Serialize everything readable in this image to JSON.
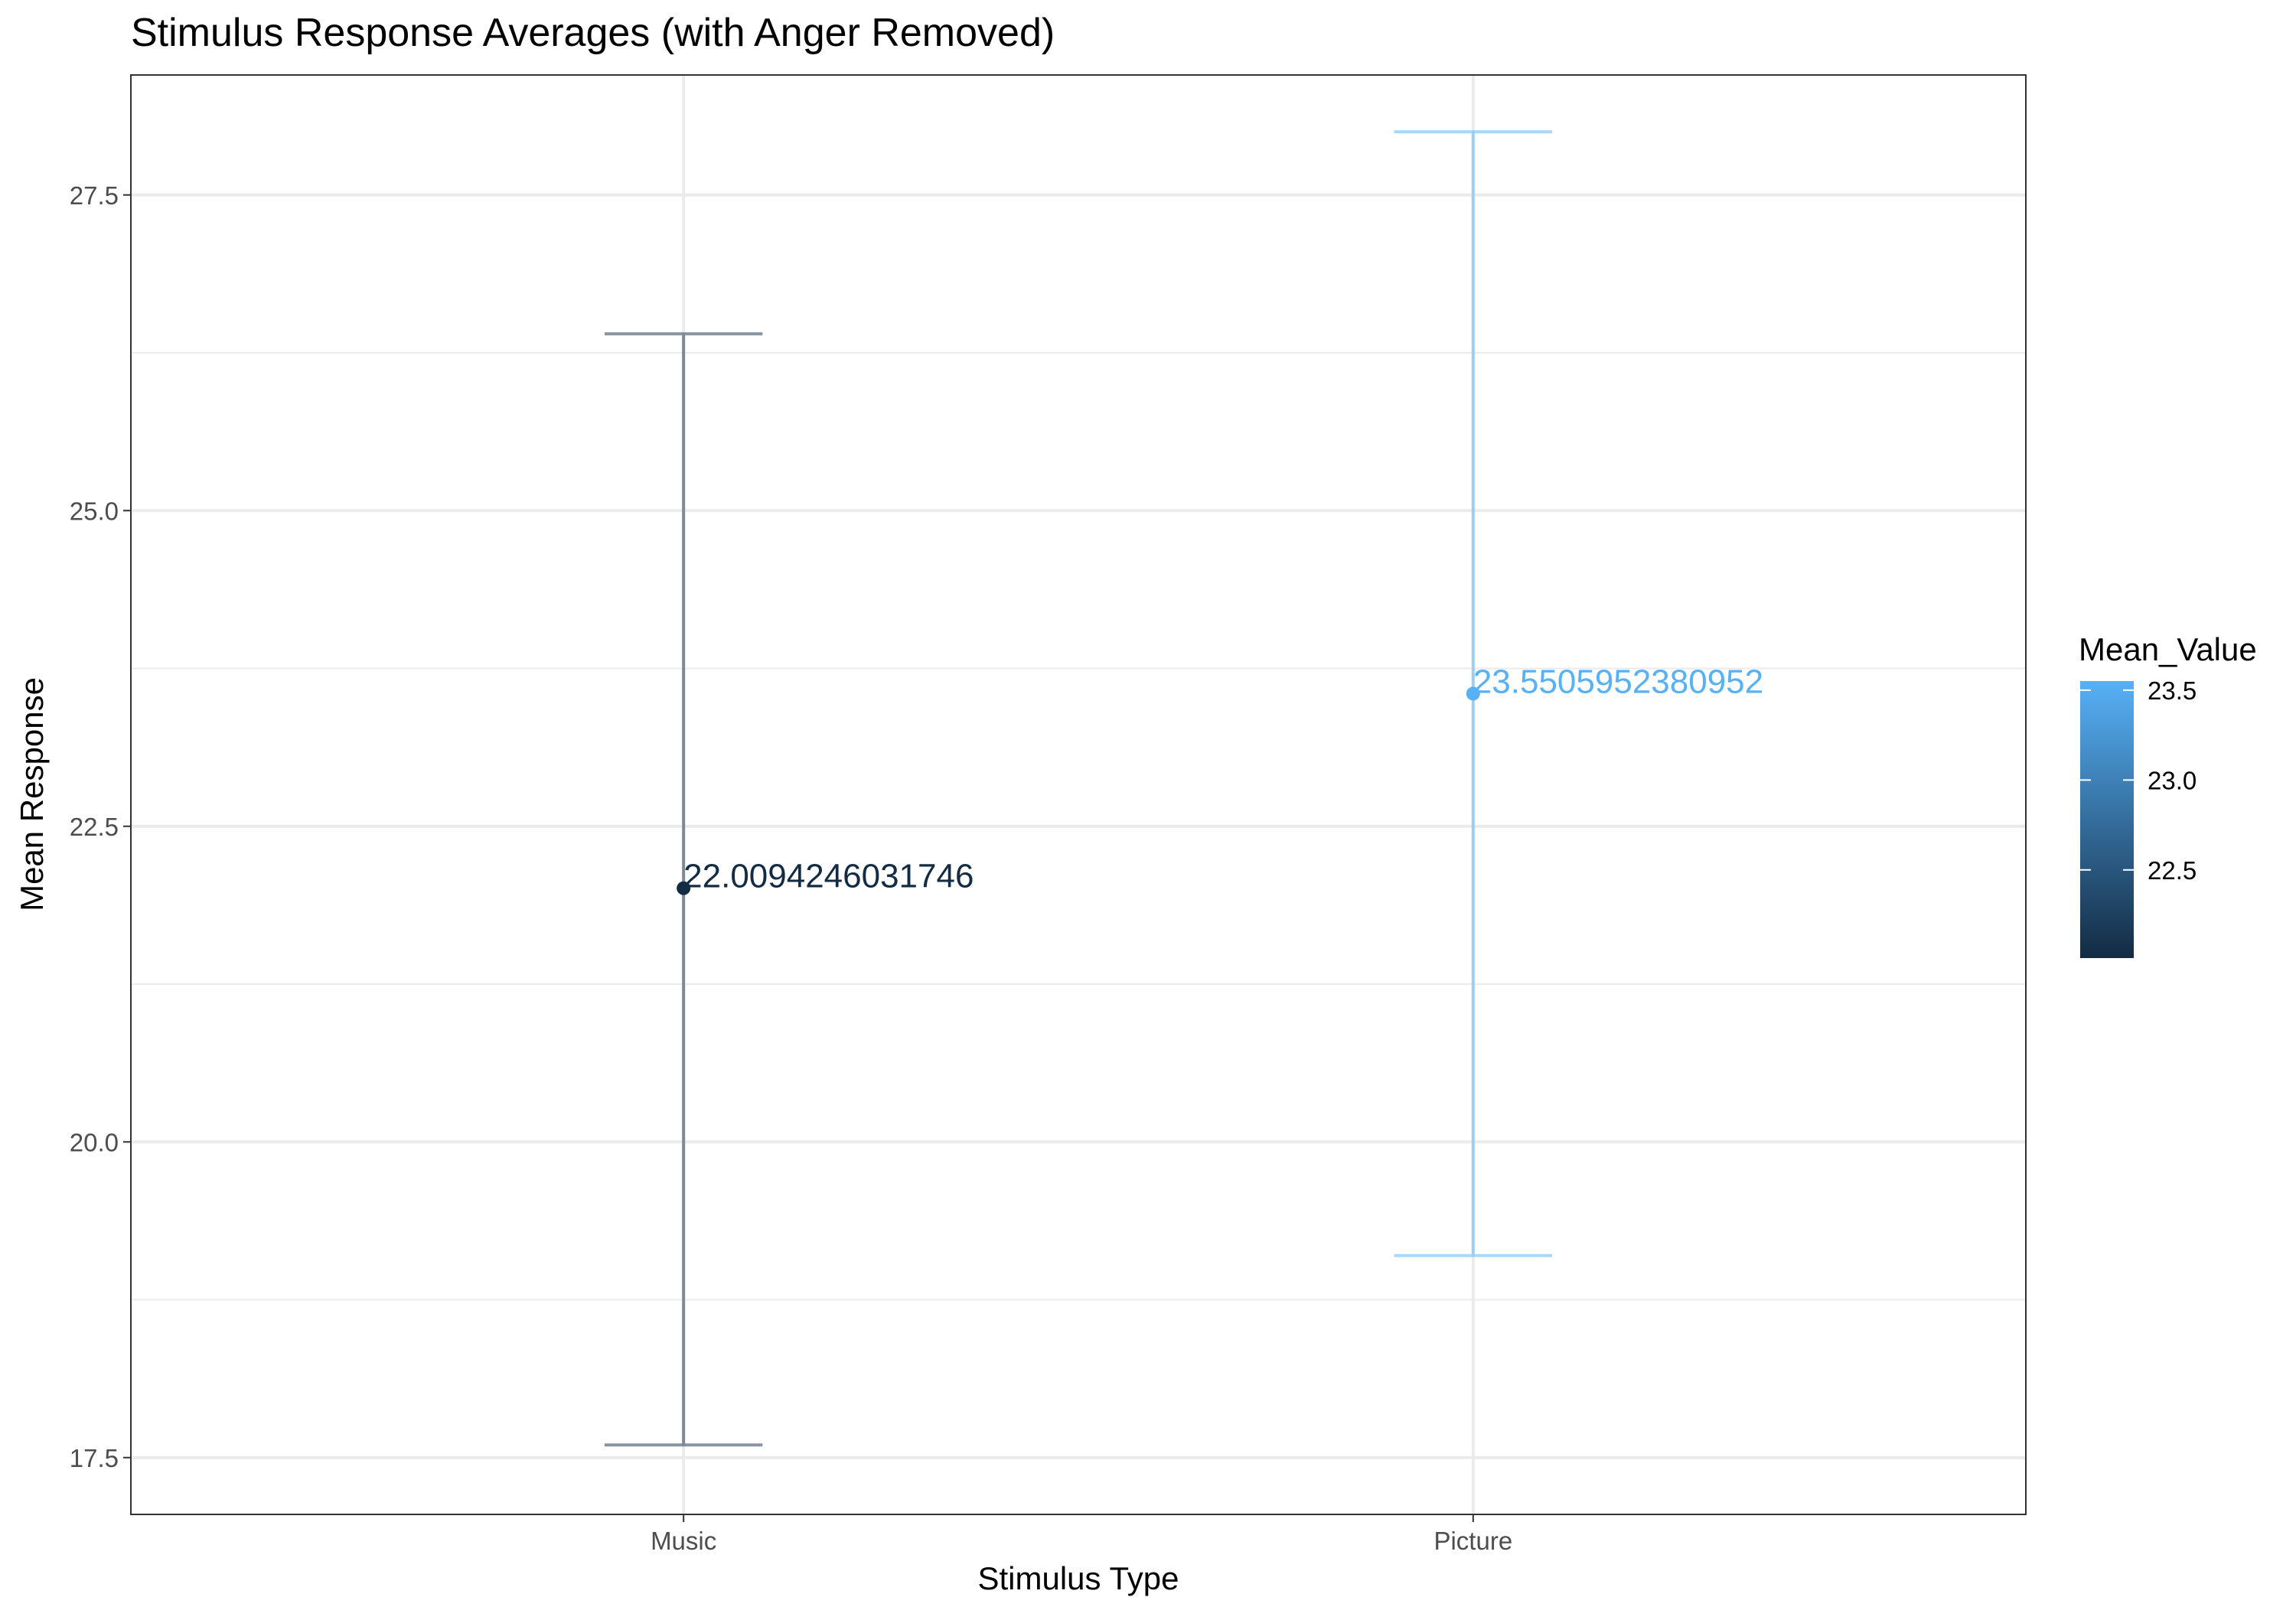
{
  "chart_data": {
    "type": "errorbar",
    "title": "Stimulus Response Averages (with Anger Removed)",
    "xlabel": "Stimulus Type",
    "ylabel": "Mean Response",
    "categories": [
      "Music",
      "Picture"
    ],
    "values": [
      22.0094246031746,
      23.5505952380952
    ],
    "labels": [
      "22.0094246031746",
      "23.5505952380952"
    ],
    "error_low": [
      17.6,
      19.1
    ],
    "error_high": [
      26.4,
      28.0
    ],
    "ylim": [
      17.05,
      28.45
    ],
    "yticks": [
      17.5,
      20.0,
      22.5,
      25.0,
      27.5
    ],
    "ytick_labels": [
      "17.5",
      "20.0",
      "22.5",
      "25.0",
      "27.5"
    ],
    "grid": true,
    "legend": {
      "title": "Mean_Value",
      "placement": "right",
      "range": [
        22.0094246031746,
        23.5505952380952
      ],
      "ticks": [
        22.5,
        23.0,
        23.5
      ],
      "tick_labels": [
        "22.5",
        "23.0",
        "23.5"
      ],
      "color_low": "#132B43",
      "color_high": "#56B1F7"
    }
  }
}
